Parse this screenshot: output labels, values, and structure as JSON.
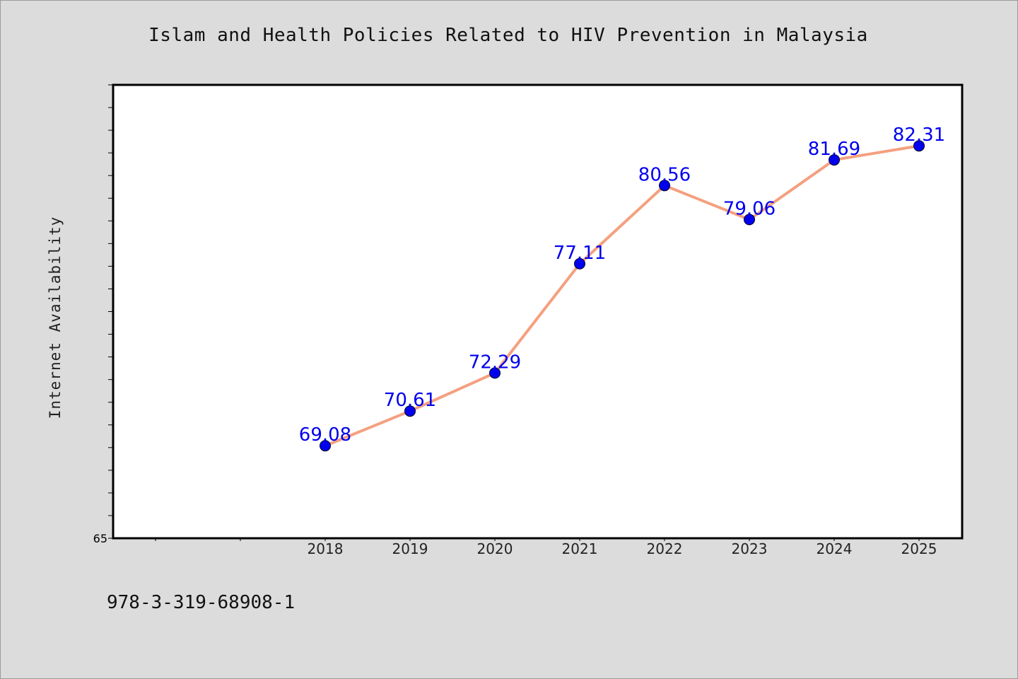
{
  "chart_data": {
    "type": "line",
    "title": "Islam and Health Policies Related to HIV Prevention in Malaysia",
    "xlabel": "",
    "ylabel": "Internet Availability",
    "x": [
      "2018",
      "2019",
      "2020",
      "2021",
      "2022",
      "2023",
      "2024",
      "2025"
    ],
    "y_tick_labels": [
      "65"
    ],
    "ylim": [
      65,
      85
    ],
    "series": [
      {
        "values": [
          69.08,
          70.61,
          72.29,
          77.11,
          80.56,
          79.06,
          81.69,
          82.31
        ],
        "labels": [
          "69.08",
          "70.61",
          "72.29",
          "77.11",
          "80.56",
          "79.06",
          "81.69",
          "82.31"
        ],
        "line_color": "#f4a07f",
        "marker_color": "#0000ee",
        "label_color": "#0000ee"
      }
    ],
    "grid": false,
    "legend": "none"
  },
  "footer": {
    "code": "978-3-319-68908-1"
  }
}
